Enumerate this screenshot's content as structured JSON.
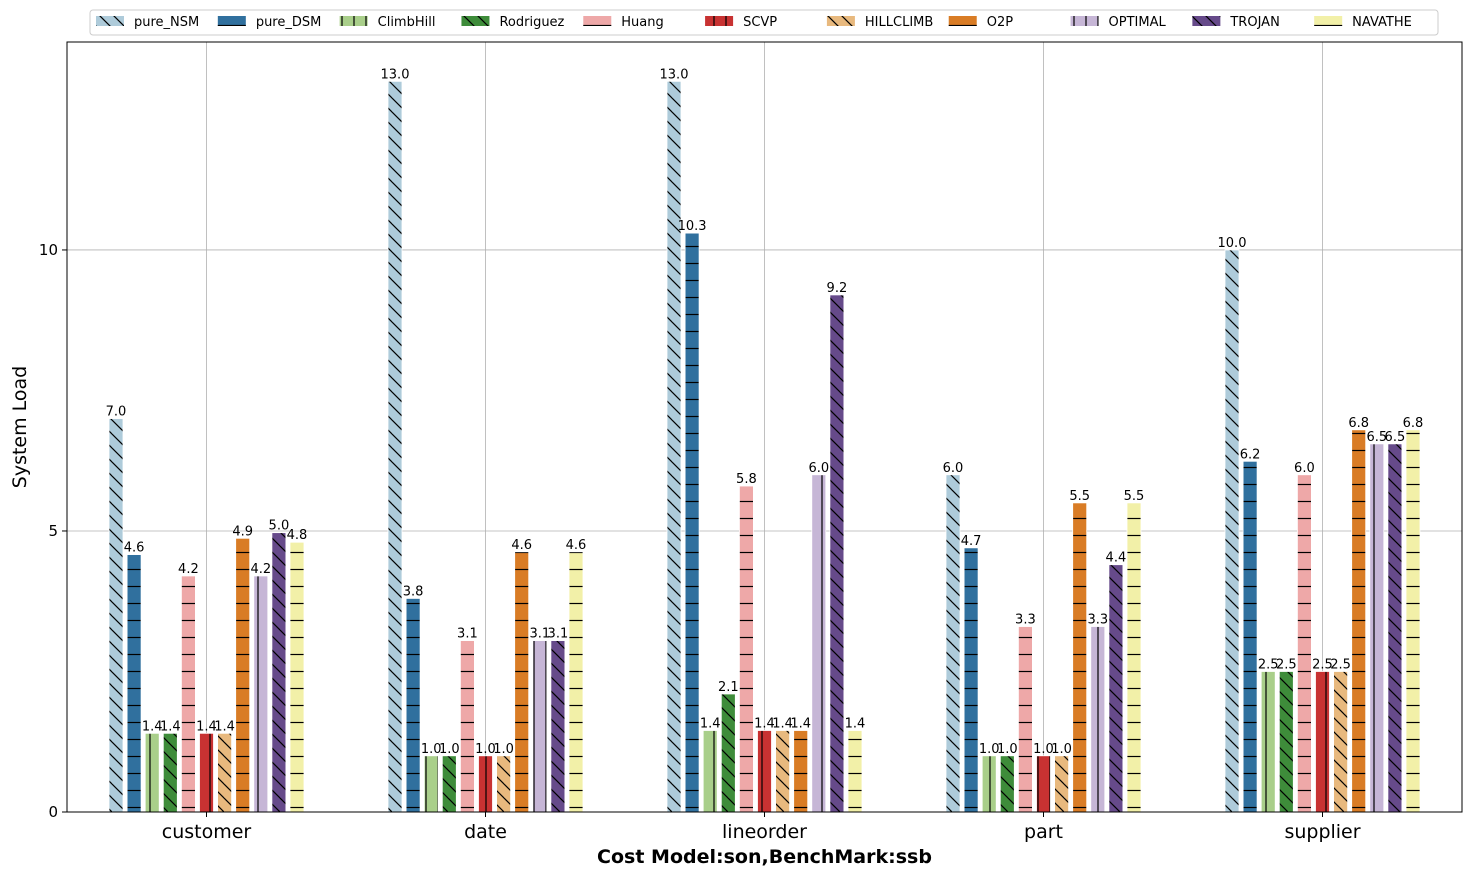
{
  "chart_data": {
    "type": "bar",
    "title": "",
    "xlabel": "Cost Model:son,BenchMark:ssb",
    "ylabel": "System Load",
    "ylim": [
      0,
      13.7
    ],
    "yticks": [
      0,
      5,
      10
    ],
    "grid": true,
    "legend_position": "top",
    "categories": [
      "customer",
      "date",
      "lineorder",
      "part",
      "supplier"
    ],
    "series": [
      {
        "name": "pure_NSM",
        "color": "#aecbda",
        "hatch": "backslash",
        "values": [
          7.0,
          13.0,
          13.0,
          6.0,
          10.0
        ],
        "labels": [
          "7.0",
          "13.0",
          "13.0",
          "6.0",
          "10.0"
        ]
      },
      {
        "name": "pure_DSM",
        "color": "#30709e",
        "hatch": "horizontal",
        "values": [
          4.58,
          3.8,
          10.3,
          4.7,
          6.24
        ],
        "labels": [
          "4.6",
          "3.8",
          "10.3",
          "4.7",
          "6.2"
        ]
      },
      {
        "name": "ClimbHill",
        "color": "#a9cf8a",
        "hatch": "vertical",
        "values": [
          1.4,
          1.0,
          1.45,
          1.0,
          2.5
        ],
        "labels": [
          "1.4",
          "1.0",
          "1.4",
          "1.0",
          "2.5"
        ]
      },
      {
        "name": "Rodriguez",
        "color": "#3e8c3a",
        "hatch": "backslash",
        "values": [
          1.4,
          1.0,
          2.1,
          1.0,
          2.5
        ],
        "labels": [
          "1.4",
          "1.0",
          "2.1",
          "1.0",
          "2.5"
        ]
      },
      {
        "name": "Huang",
        "color": "#eea8a8",
        "hatch": "horizontal",
        "values": [
          4.2,
          3.05,
          5.8,
          3.3,
          6.0
        ],
        "labels": [
          "4.2",
          "3.1",
          "5.8",
          "3.3",
          "6.0"
        ]
      },
      {
        "name": "SCVP",
        "color": "#c83232",
        "hatch": "vertical",
        "values": [
          1.4,
          1.0,
          1.45,
          1.0,
          2.5
        ],
        "labels": [
          "1.4",
          "1.0",
          "1.4",
          "1.0",
          "2.5"
        ]
      },
      {
        "name": "HILLCLIMB",
        "color": "#e8b97e",
        "hatch": "backslash",
        "values": [
          1.4,
          1.0,
          1.45,
          1.0,
          2.5
        ],
        "labels": [
          "1.4",
          "1.0",
          "1.4",
          "1.0",
          "2.5"
        ]
      },
      {
        "name": "O2P",
        "color": "#d97c25",
        "hatch": "horizontal",
        "values": [
          4.87,
          4.63,
          1.45,
          5.5,
          6.8
        ],
        "labels": [
          "4.9",
          "4.6",
          "1.4",
          "5.5",
          "6.8"
        ]
      },
      {
        "name": "OPTIMAL",
        "color": "#c6b6d6",
        "hatch": "vertical",
        "values": [
          4.2,
          3.05,
          6.0,
          3.3,
          6.55
        ],
        "labels": [
          "4.2",
          "3.1",
          "6.0",
          "3.3",
          "6.5"
        ]
      },
      {
        "name": "TROJAN",
        "color": "#664a8a",
        "hatch": "backslash",
        "values": [
          4.97,
          3.05,
          9.2,
          4.4,
          6.55
        ],
        "labels": [
          "5.0",
          "3.1",
          "9.2",
          "4.4",
          "6.5"
        ]
      },
      {
        "name": "NAVATHE",
        "color": "#f2f0a8",
        "hatch": "horizontal",
        "values": [
          4.8,
          4.63,
          1.45,
          5.5,
          6.8
        ],
        "labels": [
          "4.8",
          "4.6",
          "",
          "5.5",
          "6.8"
        ]
      }
    ],
    "extra_labels": [
      {
        "category": "lineorder",
        "series": "NAVATHE",
        "label": "1.4"
      }
    ]
  }
}
